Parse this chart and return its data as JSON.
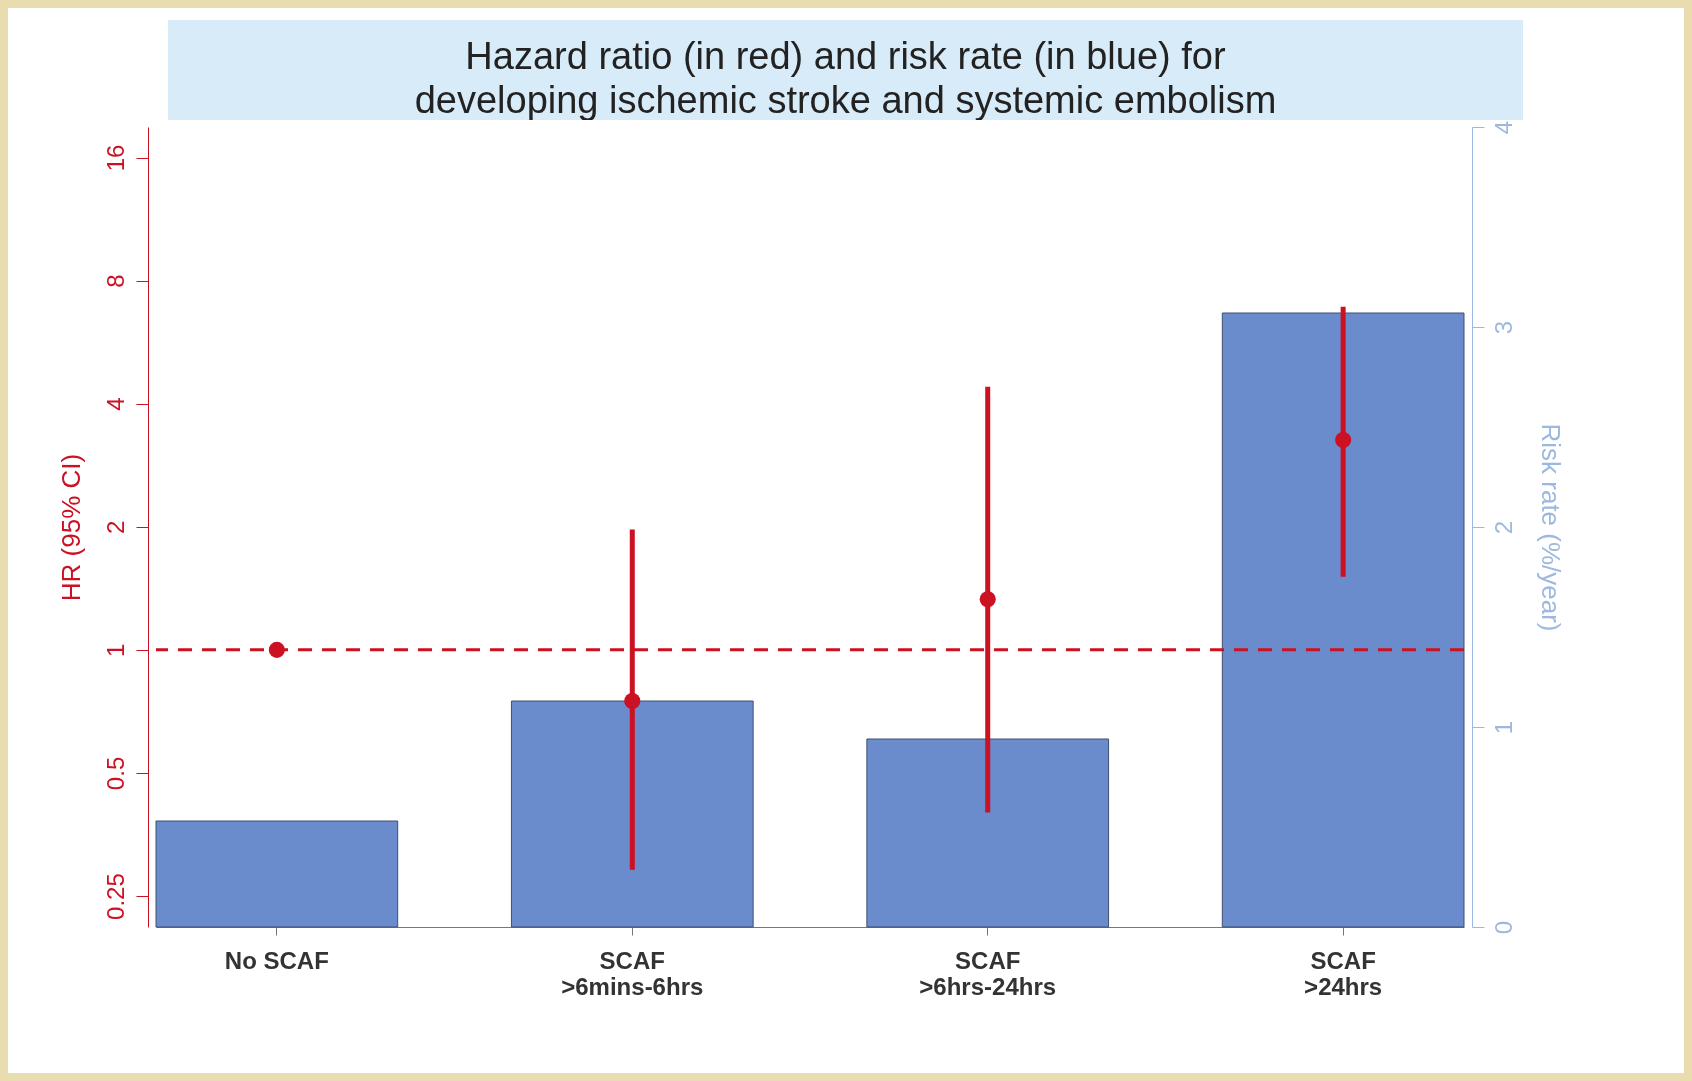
{
  "chart_data": {
    "type": "bar",
    "title": "Hazard ratio (in red) and risk rate (in blue) for\ndeveloping ischemic stroke and systemic embolism",
    "ylabel": "HR (95% CI)",
    "y2label": "Risk rate (%/year)",
    "categories": [
      "No SCAF",
      "SCAF\n>6mins-6hrs",
      "SCAF\n>6hrs-24hrs",
      "SCAF\n>24hrs"
    ],
    "series": [
      {
        "type": "bar",
        "axis": "y2",
        "color": "#6a8ccc",
        "values": [
          0.53,
          1.13,
          0.94,
          3.07
        ]
      },
      {
        "type": "scatter",
        "axis": "y",
        "color": "#cc1122",
        "values": [
          1,
          0.75,
          1.33,
          3.26
        ],
        "errors": [
          null,
          [
            0.29,
            1.97
          ],
          [
            0.4,
            4.4
          ],
          [
            1.51,
            6.9
          ]
        ]
      }
    ],
    "ylim": [
      0.21,
      19
    ],
    "yticks": [
      0.25,
      0.5,
      1,
      2,
      4,
      8,
      16
    ],
    "log": "y",
    "y2lim": [
      0,
      4
    ],
    "y2ticks": [
      0,
      1,
      2,
      3,
      4
    ],
    "ref_lines": [
      {
        "axis": "y",
        "value": 1,
        "color": "#cc1122",
        "line_style": "dashed"
      }
    ],
    "marker": "circle",
    "grid": false,
    "legend": false
  }
}
